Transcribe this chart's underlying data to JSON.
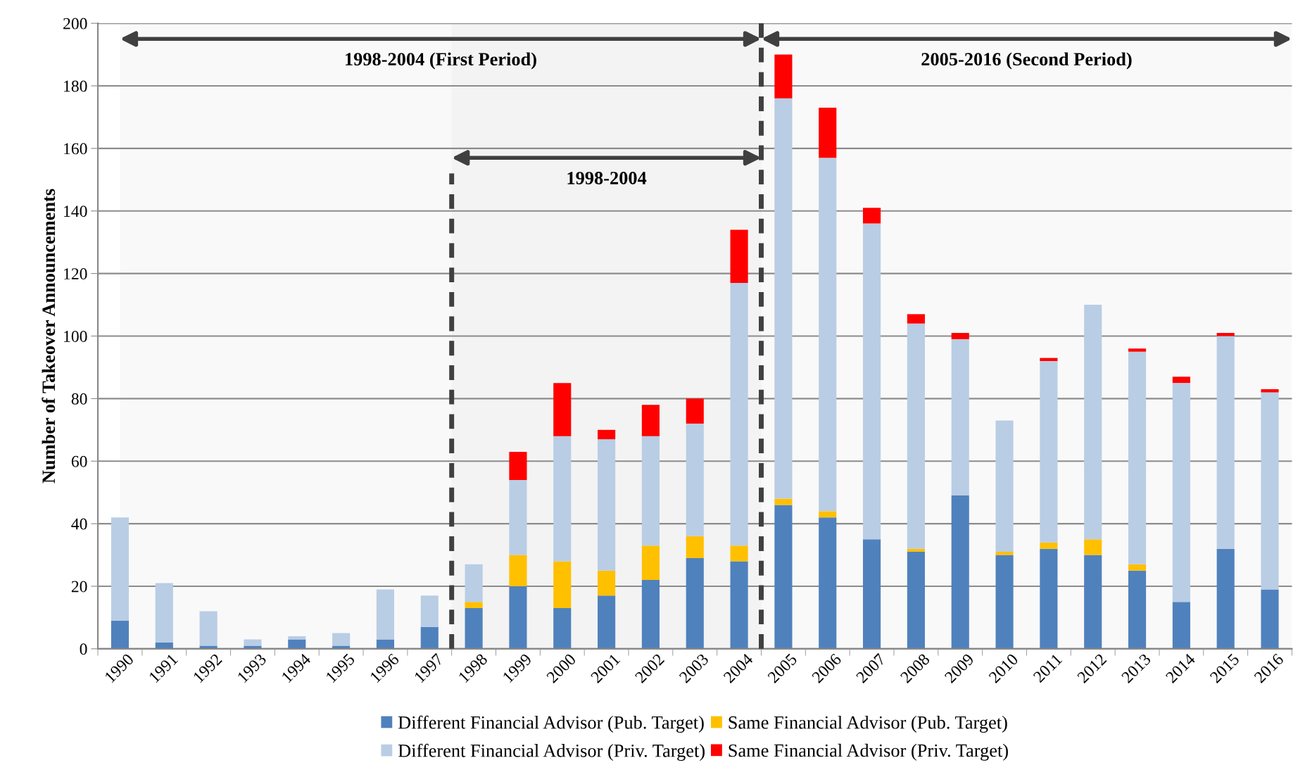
{
  "chart_data": {
    "type": "bar",
    "stacked": true,
    "ylabel": "Number of Takeover Announcements",
    "x": [
      1990,
      1991,
      1992,
      1993,
      1994,
      1995,
      1996,
      1997,
      1998,
      1999,
      2000,
      2001,
      2002,
      2003,
      2004,
      2005,
      2006,
      2007,
      2008,
      2009,
      2010,
      2011,
      2012,
      2013,
      2014,
      2015,
      2016
    ],
    "series": [
      {
        "name": "Different Financial Advisor (Pub. Target)",
        "color": "#4f81bd",
        "values": [
          9,
          2,
          1,
          1,
          3,
          1,
          3,
          7,
          13,
          20,
          13,
          17,
          22,
          29,
          28,
          46,
          42,
          35,
          31,
          49,
          30,
          32,
          30,
          25,
          15,
          32,
          19
        ]
      },
      {
        "name": "Same Financial Advisor (Pub. Target)",
        "color": "#ffc000",
        "values": [
          0,
          0,
          0,
          0,
          0,
          0,
          0,
          0,
          2,
          10,
          15,
          8,
          11,
          7,
          5,
          2,
          2,
          0,
          1,
          0,
          1,
          2,
          5,
          2,
          0,
          0,
          0
        ]
      },
      {
        "name": "Different Financial Advisor (Priv. Target)",
        "color": "#b9cde5",
        "values": [
          33,
          19,
          11,
          2,
          1,
          4,
          16,
          10,
          12,
          24,
          40,
          42,
          35,
          36,
          84,
          128,
          113,
          101,
          72,
          50,
          42,
          58,
          75,
          68,
          70,
          68,
          63
        ]
      },
      {
        "name": "Same Financial Advisor (Priv. Target)",
        "color": "#ff0000",
        "values": [
          0,
          0,
          0,
          0,
          0,
          0,
          0,
          0,
          0,
          9,
          17,
          3,
          10,
          8,
          17,
          14,
          16,
          5,
          3,
          2,
          0,
          1,
          0,
          1,
          2,
          1,
          1
        ]
      }
    ],
    "xlim": [
      1989.5,
      2016.5
    ],
    "xticks": [
      1990,
      1991,
      1992,
      1993,
      1994,
      1995,
      1996,
      1997,
      1998,
      1999,
      2000,
      2001,
      2002,
      2003,
      2004,
      2005,
      2006,
      2007,
      2008,
      2009,
      2010,
      2011,
      2012,
      2013,
      2014,
      2015,
      2016
    ],
    "ylim": [
      0,
      200
    ],
    "yticks": [
      0,
      20,
      40,
      60,
      80,
      100,
      120,
      140,
      160,
      180,
      200
    ],
    "grid": "y",
    "legend": "bottom",
    "ref_lines": [
      {
        "axis": "x",
        "value": 1997.5,
        "line_style": "dashed",
        "color": "#404040"
      },
      {
        "axis": "x",
        "value": 2004.5,
        "line_style": "dashed",
        "color": "#404040"
      }
    ],
    "bands": [
      {
        "axis": "x",
        "from": 1990,
        "to": 2004.5,
        "label": "1998-2004 (First Period)",
        "color": "#404040"
      },
      {
        "axis": "x",
        "from": 2004.5,
        "to": 2016.5,
        "label": "2005-2016 (Second Period)",
        "color": "#404040"
      },
      {
        "axis": "x",
        "from": 1997.5,
        "to": 2004.5,
        "label": "1998-2004",
        "color": "#404040"
      }
    ]
  }
}
